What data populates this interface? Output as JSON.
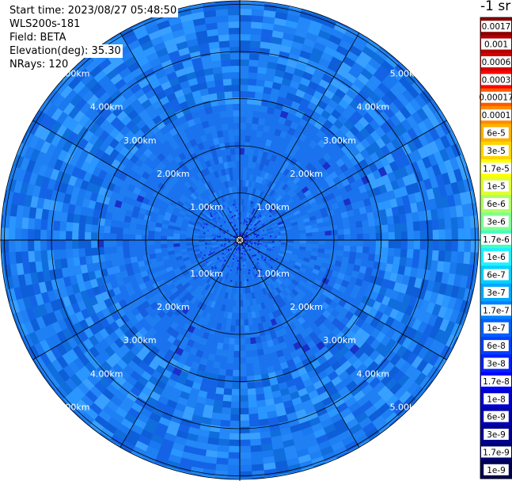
{
  "info": {
    "start_time": "Start time: 2023/08/27 05:48:50",
    "instrument": "WLS200s-181",
    "field": "Field: BETA",
    "elevation": "Elevation(deg): 35.30",
    "nrays": "NRays: 120"
  },
  "colorbar": {
    "unit_label": "-1 sr",
    "labels": [
      "0.0017",
      "0.001",
      "0.0006",
      "0.0003",
      "0.00017",
      "0.0001",
      "6e-5",
      "3e-5",
      "1.7e-5",
      "1e-5",
      "6e-6",
      "3e-6",
      "1.7e-6",
      "1e-6",
      "6e-7",
      "3e-7",
      "1.7e-7",
      "1e-7",
      "6e-8",
      "3e-8",
      "1.7e-8",
      "1e-8",
      "6e-9",
      "3e-9",
      "1.7e-9",
      "1e-9"
    ],
    "colors": [
      "#8b0000",
      "#b30000",
      "#d40000",
      "#ff0000",
      "#ff5a00",
      "#ff8c00",
      "#ffb000",
      "#ffd400",
      "#ffff00",
      "#e0ff30",
      "#b0ff60",
      "#80ff90",
      "#40ffc0",
      "#20f0ff",
      "#00d0ff",
      "#00a8ff",
      "#0080ff",
      "#0060ff",
      "#0040ff",
      "#0020ff",
      "#0000ff",
      "#0000d0",
      "#0000b0",
      "#000090",
      "#000070",
      "#000050"
    ]
  },
  "chart_data": {
    "type": "heatmap",
    "projection": "polar (PPI scan)",
    "field": "BETA",
    "elevation_deg": 35.3,
    "n_rays": 120,
    "range_rings_km": [
      1.0,
      2.0,
      3.0,
      4.0,
      5.0
    ],
    "ring_labels": [
      "1.00km",
      "2.00km",
      "3.00km",
      "4.00km",
      "5.00km"
    ],
    "max_range_km": 6.6,
    "spokes_deg": [
      0,
      30,
      60,
      90,
      120,
      150,
      180,
      210,
      240,
      270,
      300,
      330
    ],
    "value_range_sr": [
      1e-09,
      0.0017
    ],
    "dominant_value_range_sr": [
      6e-08,
      1.7e-07
    ],
    "near_center_value_sr": 1e-08
  }
}
